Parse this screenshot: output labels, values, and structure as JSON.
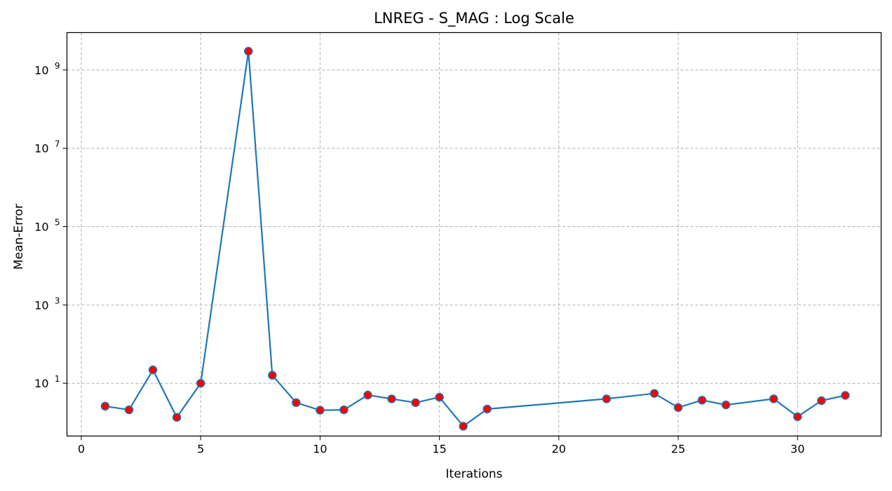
{
  "chart_data": {
    "type": "line",
    "title": "LNREG - S_MAG : Log Scale",
    "xlabel": "Iterations",
    "ylabel": "Mean-Error",
    "xlim": [
      -0.6,
      33.5
    ],
    "ylim": [
      0.45,
      9000000000
    ],
    "yscale": "log",
    "xticks": [
      0,
      5,
      10,
      15,
      20,
      25,
      30
    ],
    "yticks": [
      {
        "value": 10,
        "base": "10",
        "exp": "1"
      },
      {
        "value": 1000,
        "base": "10",
        "exp": "3"
      },
      {
        "value": 100000,
        "base": "10",
        "exp": "5"
      },
      {
        "value": 10000000,
        "base": "10",
        "exp": "7"
      },
      {
        "value": 1000000000,
        "base": "10",
        "exp": "9"
      }
    ],
    "grid": true,
    "colors": {
      "line": "#1f77b4",
      "marker_face": "#ff0000",
      "marker_edge": "#1f77b4"
    },
    "series": [
      {
        "x": [
          1,
          2,
          3,
          4,
          5,
          7,
          8,
          9,
          10,
          11,
          12,
          13,
          14,
          15,
          16,
          17,
          22,
          24,
          25,
          26,
          27,
          29,
          30,
          31,
          32
        ],
        "y": [
          2.6,
          2.1,
          22,
          1.35,
          10,
          3000000000,
          16,
          3.2,
          2.05,
          2.1,
          5.0,
          4.0,
          3.2,
          4.4,
          0.8,
          2.2,
          4.0,
          5.5,
          2.4,
          3.7,
          2.8,
          4.0,
          1.4,
          3.6,
          4.9
        ]
      }
    ]
  }
}
